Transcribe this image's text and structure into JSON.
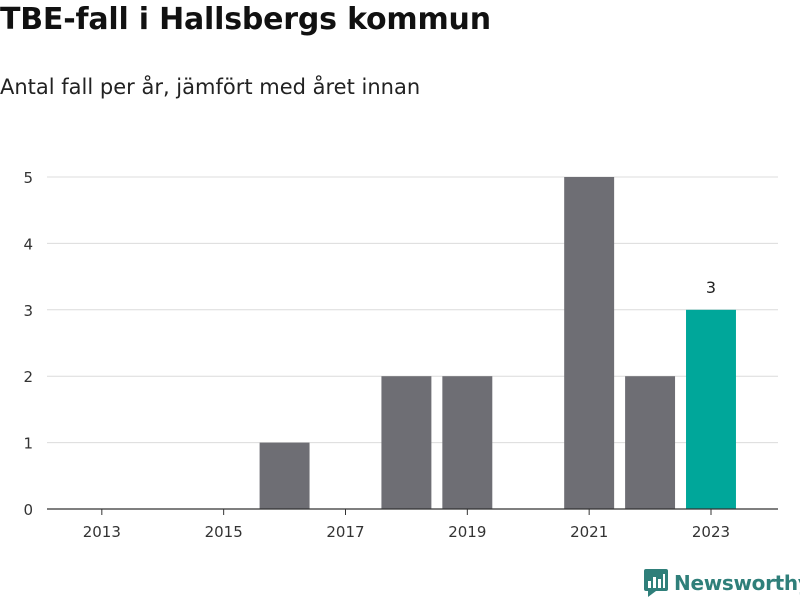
{
  "chart_data": {
    "type": "bar",
    "title": "TBE-fall i Hallsbergs kommun",
    "subtitle": "Antal fall per år, jämfört med året innan",
    "x_tick_labels": [
      "2013",
      "2015",
      "2017",
      "2019",
      "2021",
      "2023"
    ],
    "y_tick_labels": [
      "0",
      "1",
      "2",
      "3",
      "4",
      "5"
    ],
    "categories": [
      2013,
      2014,
      2015,
      2016,
      2017,
      2018,
      2019,
      2020,
      2021,
      2022,
      2023
    ],
    "values": [
      0,
      0,
      0,
      1,
      0,
      2,
      2,
      0,
      5,
      2,
      3
    ],
    "highlight": {
      "category": 2023,
      "value": 3,
      "label": "3"
    },
    "xlim": [
      2012.1,
      2024.1
    ],
    "ylim": [
      0,
      5
    ],
    "grid": true,
    "colors": {
      "bar": "#6e6e74",
      "highlight_bar": "#00a79a",
      "grid": "#dcdcdc",
      "axis": "#333333"
    }
  },
  "brand": {
    "name": "Newsworthy",
    "icon": "newsworthy-logo-icon",
    "color": "#2f7f7a"
  }
}
